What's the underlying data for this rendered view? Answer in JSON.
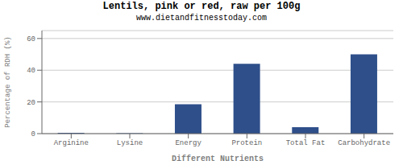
{
  "chart_data": {
    "type": "bar",
    "title": "Lentils, pink or red, raw per 100g",
    "subtitle": "www.dietandfitnesstoday.com",
    "xlabel": "Different Nutrients",
    "ylabel": "Percentage of RDH (%)",
    "categories": [
      "Arginine",
      "Lysine",
      "Energy",
      "Protein",
      "Total Fat",
      "Carbohydrate"
    ],
    "values": [
      0.5,
      0.3,
      18.5,
      44.0,
      4.0,
      50.0
    ],
    "color": "#2e4f8a",
    "ylim": [
      0,
      65
    ],
    "yticks": [
      0,
      20,
      40,
      60
    ],
    "grid": true
  }
}
